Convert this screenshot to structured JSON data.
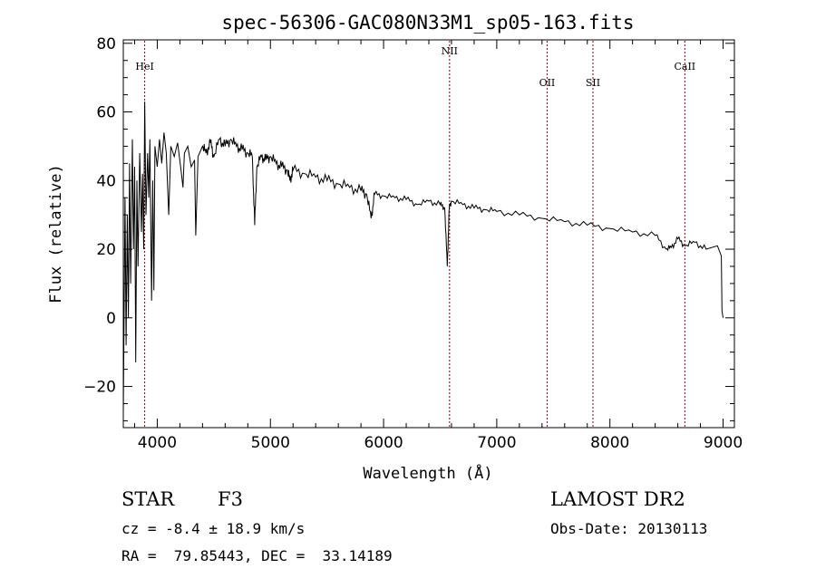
{
  "chart_data": {
    "type": "line",
    "title": "spec-56306-GAC080N33M1_sp05-163.fits",
    "xlabel": "Wavelength (Å)",
    "ylabel": "Flux (relative)",
    "xlim": [
      3700,
      9100
    ],
    "ylim": [
      -32,
      81
    ],
    "x_ticks": [
      4000,
      5000,
      6000,
      7000,
      8000,
      9000
    ],
    "y_ticks": [
      -20,
      0,
      20,
      40,
      60,
      80
    ],
    "grid": false,
    "line_color": "#000000",
    "marker_color": "#8b0000",
    "series": [
      {
        "points": [
          [
            3700,
            -28
          ],
          [
            3715,
            35
          ],
          [
            3725,
            -8
          ],
          [
            3735,
            30
          ],
          [
            3745,
            0
          ],
          [
            3755,
            45
          ],
          [
            3765,
            10
          ],
          [
            3780,
            52
          ],
          [
            3790,
            20
          ],
          [
            3800,
            44
          ],
          [
            3810,
            -13
          ],
          [
            3820,
            40
          ],
          [
            3830,
            15
          ],
          [
            3845,
            48
          ],
          [
            3860,
            25
          ],
          [
            3870,
            42
          ],
          [
            3880,
            20
          ],
          [
            3889,
            63
          ],
          [
            3900,
            30
          ],
          [
            3915,
            48
          ],
          [
            3925,
            35
          ],
          [
            3935,
            52
          ],
          [
            3950,
            5
          ],
          [
            3960,
            40
          ],
          [
            3970,
            8
          ],
          [
            3980,
            50
          ],
          [
            4000,
            44
          ],
          [
            4020,
            52
          ],
          [
            4040,
            45
          ],
          [
            4060,
            54
          ],
          [
            4080,
            48
          ],
          [
            4101,
            30
          ],
          [
            4120,
            50
          ],
          [
            4150,
            47
          ],
          [
            4180,
            51
          ],
          [
            4210,
            43
          ],
          [
            4227,
            38
          ],
          [
            4240,
            48
          ],
          [
            4270,
            50
          ],
          [
            4300,
            44
          ],
          [
            4330,
            46
          ],
          [
            4340,
            24
          ],
          [
            4360,
            47
          ],
          [
            4400,
            50
          ],
          [
            4430,
            48
          ],
          [
            4470,
            51
          ],
          [
            4500,
            47
          ],
          [
            4550,
            52
          ],
          [
            4600,
            50
          ],
          [
            4650,
            52
          ],
          [
            4700,
            50
          ],
          [
            4750,
            49
          ],
          [
            4800,
            48
          ],
          [
            4840,
            47
          ],
          [
            4861,
            27
          ],
          [
            4880,
            44
          ],
          [
            4920,
            47
          ],
          [
            4960,
            46
          ],
          [
            5000,
            47
          ],
          [
            5050,
            45
          ],
          [
            5100,
            44
          ],
          [
            5150,
            43
          ],
          [
            5172,
            40
          ],
          [
            5200,
            43
          ],
          [
            5300,
            42
          ],
          [
            5400,
            41
          ],
          [
            5500,
            40
          ],
          [
            5600,
            39
          ],
          [
            5700,
            38
          ],
          [
            5800,
            37
          ],
          [
            5850,
            36
          ],
          [
            5890,
            29
          ],
          [
            5920,
            36
          ],
          [
            6000,
            35.5
          ],
          [
            6100,
            35
          ],
          [
            6200,
            34.5
          ],
          [
            6300,
            33
          ],
          [
            6400,
            34
          ],
          [
            6500,
            33
          ],
          [
            6540,
            32
          ],
          [
            6563,
            15
          ],
          [
            6580,
            32
          ],
          [
            6600,
            34
          ],
          [
            6700,
            33
          ],
          [
            6800,
            32
          ],
          [
            6900,
            31.5
          ],
          [
            7000,
            31
          ],
          [
            7200,
            30
          ],
          [
            7400,
            29
          ],
          [
            7600,
            28
          ],
          [
            7800,
            27
          ],
          [
            8000,
            26
          ],
          [
            8200,
            25
          ],
          [
            8400,
            24
          ],
          [
            8498,
            20
          ],
          [
            8542,
            20.5
          ],
          [
            8600,
            23
          ],
          [
            8662,
            21
          ],
          [
            8750,
            22
          ],
          [
            8850,
            20
          ],
          [
            8950,
            21
          ],
          [
            8985,
            18
          ],
          [
            8990,
            2
          ],
          [
            9000,
            0
          ]
        ]
      }
    ],
    "line_markers": [
      {
        "label": "HeI",
        "x": 3889
      },
      {
        "label": "NII",
        "x": 6583
      },
      {
        "label": "OII",
        "x": 7445
      },
      {
        "label": "SII",
        "x": 7850
      },
      {
        "label": "CaII",
        "x": 8662
      }
    ],
    "info": {
      "object_class": "STAR",
      "subclass": "F3",
      "survey": "LAMOST DR2",
      "redshift": "cz = -8.4 ± 18.9 km/s",
      "obs_date": "Obs-Date: 20130113",
      "coords": "RA =  79.85443, DEC =  33.14189"
    }
  }
}
